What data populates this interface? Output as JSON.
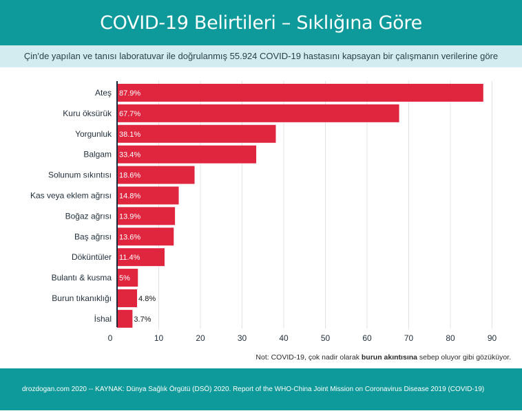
{
  "header": {
    "title": "COVID-19 Belirtileri – Sıklığına Göre"
  },
  "subtitle": "Çin'de yapılan ve tanısı laboratuvar ile doğrulanmış 55.924 COVID-19 hastasını kapsayan bir çalışmanın verilerine göre",
  "note": {
    "prefix": "Not: COVID-19, çok nadir olarak ",
    "bold": "burun akıntısına",
    "suffix": " sebep oluyor gibi gözüküyor."
  },
  "footer": "drozdogan.com 2020 -- KAYNAK: Dünya Sağlık Örgütü (DSÖ) 2020. Report of the WHO-China Joint Mission on Coronavirus Disease 2019 (COVID-19)",
  "colors": {
    "bar": "#e0263f",
    "accent": "#0e9a9a",
    "band": "#d2ecef"
  },
  "chart_data": {
    "type": "bar",
    "orientation": "horizontal",
    "title": "COVID-19 Belirtileri – Sıklığına Göre",
    "xlabel": "",
    "ylabel": "",
    "xlim": [
      0,
      90
    ],
    "xticks": [
      0,
      10,
      20,
      30,
      40,
      50,
      60,
      70,
      80,
      90
    ],
    "grid": true,
    "categories": [
      "Ateş",
      "Kuru öksürük",
      "Yorgunluk",
      "Balgam",
      "Solunum sıkıntısı",
      "Kas veya eklem ağrısı",
      "Boğaz ağrısı",
      "Baş ağrısı",
      "Döküntüler",
      "Bulantı & kusma",
      "Burun tıkanıklığı",
      "İshal"
    ],
    "values": [
      87.9,
      67.7,
      38.1,
      33.4,
      18.6,
      14.8,
      13.9,
      13.6,
      11.4,
      5,
      4.8,
      3.7
    ],
    "labels": [
      "87.9%",
      "67.7%",
      "38.1%",
      "33.4%",
      "18.6%",
      "14.8%",
      "13.9%",
      "13.6%",
      "11.4%",
      "5%",
      "4.8%",
      "3.7%"
    ]
  }
}
